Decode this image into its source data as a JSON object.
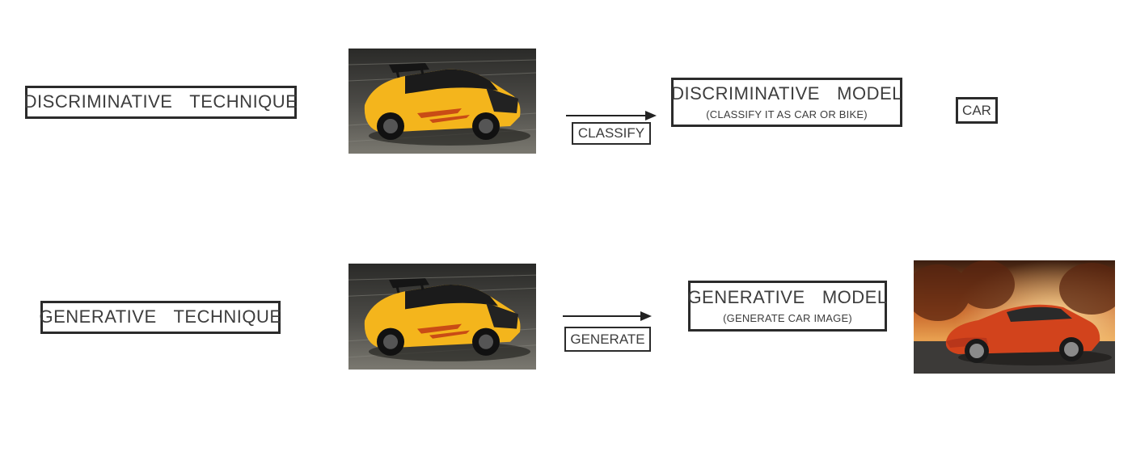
{
  "rows": [
    {
      "technique": "DISCRIMINATIVE  TECHNIQUE",
      "action": "CLASSIFY",
      "model_title": "DISCRIMINATIVE  MODEL",
      "model_subtitle": "(CLASSIFY IT AS CAR OR BIKE)",
      "output": "CAR"
    },
    {
      "technique": "GENERATIVE  TECHNIQUE",
      "action": "GENERATE",
      "model_title": "GENERATIVE  MODEL",
      "model_subtitle": "(GENERATE CAR IMAGE)"
    }
  ],
  "images": {
    "input_car": "yellow-sports-car-photo",
    "generated_car": "orange-sports-car-photo"
  },
  "colors": {
    "box_border": "#2b2b2b",
    "yellow_car": "#f4b51c",
    "orange_car": "#d2431c"
  }
}
